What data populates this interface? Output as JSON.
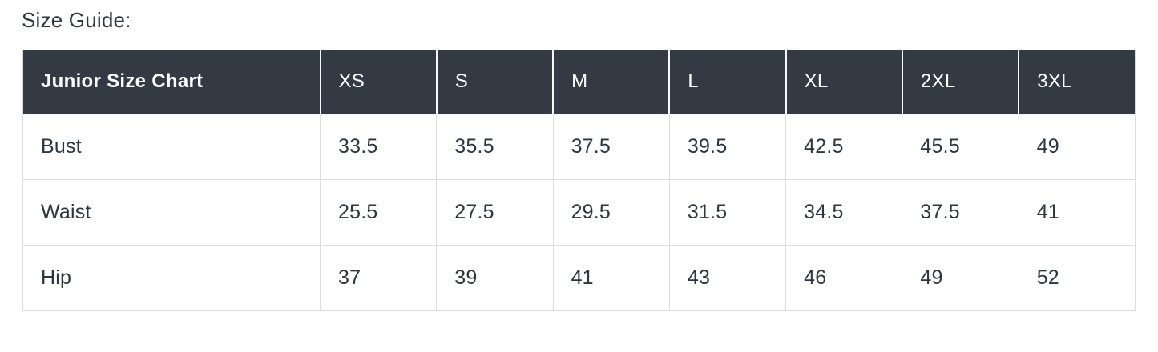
{
  "page": {
    "title": "Size Guide:"
  },
  "size_table": {
    "header": [
      "Junior Size Chart",
      "XS",
      "S",
      "M",
      "L",
      "XL",
      "2XL",
      "3XL"
    ],
    "rows": [
      {
        "label": "Bust",
        "values": [
          "33.5",
          "35.5",
          "37.5",
          "39.5",
          "42.5",
          "45.5",
          "49"
        ]
      },
      {
        "label": "Waist",
        "values": [
          "25.5",
          "27.5",
          "29.5",
          "31.5",
          "34.5",
          "37.5",
          "41"
        ]
      },
      {
        "label": "Hip",
        "values": [
          "37",
          "39",
          "41",
          "43",
          "46",
          "49",
          "52"
        ]
      }
    ]
  },
  "chart_data": {
    "type": "table",
    "title": "Size Guide:",
    "table_name": "Junior Size Chart",
    "columns": [
      "Junior Size Chart",
      "XS",
      "S",
      "M",
      "L",
      "XL",
      "2XL",
      "3XL"
    ],
    "rows": [
      [
        "Bust",
        33.5,
        35.5,
        37.5,
        39.5,
        42.5,
        45.5,
        49
      ],
      [
        "Waist",
        25.5,
        27.5,
        29.5,
        31.5,
        34.5,
        37.5,
        41
      ],
      [
        "Hip",
        37,
        39,
        41,
        43,
        46,
        49,
        52
      ]
    ]
  },
  "colors": {
    "page_bg": "#ffffff",
    "header_bg": "#343a43",
    "header_text": "#ffffff",
    "body_text": "#2d3540",
    "border": "#d9dce1",
    "header_divider": "#f5f6f7"
  }
}
